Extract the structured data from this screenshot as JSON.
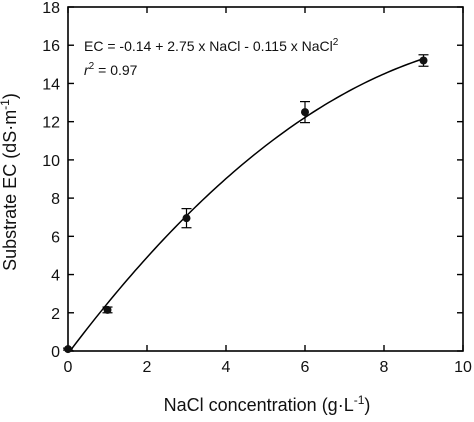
{
  "chart_data": {
    "type": "scatter",
    "xlabel": "NaCl concentration (g·L",
    "xlabel_sup": "-1",
    "xlabel_tail": ")",
    "ylabel": "Substrate EC (dS·m",
    "ylabel_sup": "-1",
    "ylabel_tail": ")",
    "xlim": [
      0,
      10
    ],
    "ylim": [
      0,
      18
    ],
    "xticks": [
      0,
      2,
      4,
      6,
      8,
      10
    ],
    "yticks": [
      0,
      2,
      4,
      6,
      8,
      10,
      12,
      14,
      16,
      18
    ],
    "grid": false,
    "points": [
      {
        "x": 0,
        "y": 0.1,
        "err": 0.05
      },
      {
        "x": 1,
        "y": 2.15,
        "err": 0.15
      },
      {
        "x": 3,
        "y": 6.95,
        "err": 0.5
      },
      {
        "x": 6,
        "y": 12.5,
        "err": 0.55
      },
      {
        "x": 9,
        "y": 15.2,
        "err": 0.3
      }
    ],
    "fit": {
      "intercept": -0.14,
      "linear": 2.75,
      "quadratic": -0.115,
      "x_range": [
        0,
        9
      ]
    },
    "annotation": {
      "equation": "EC = -0.14 + 2.75 x NaCl - 0.115 x NaCl",
      "equation_sup": "2",
      "r2_label": "r",
      "r2_sup": "2",
      "r2_value": " = 0.97"
    }
  }
}
